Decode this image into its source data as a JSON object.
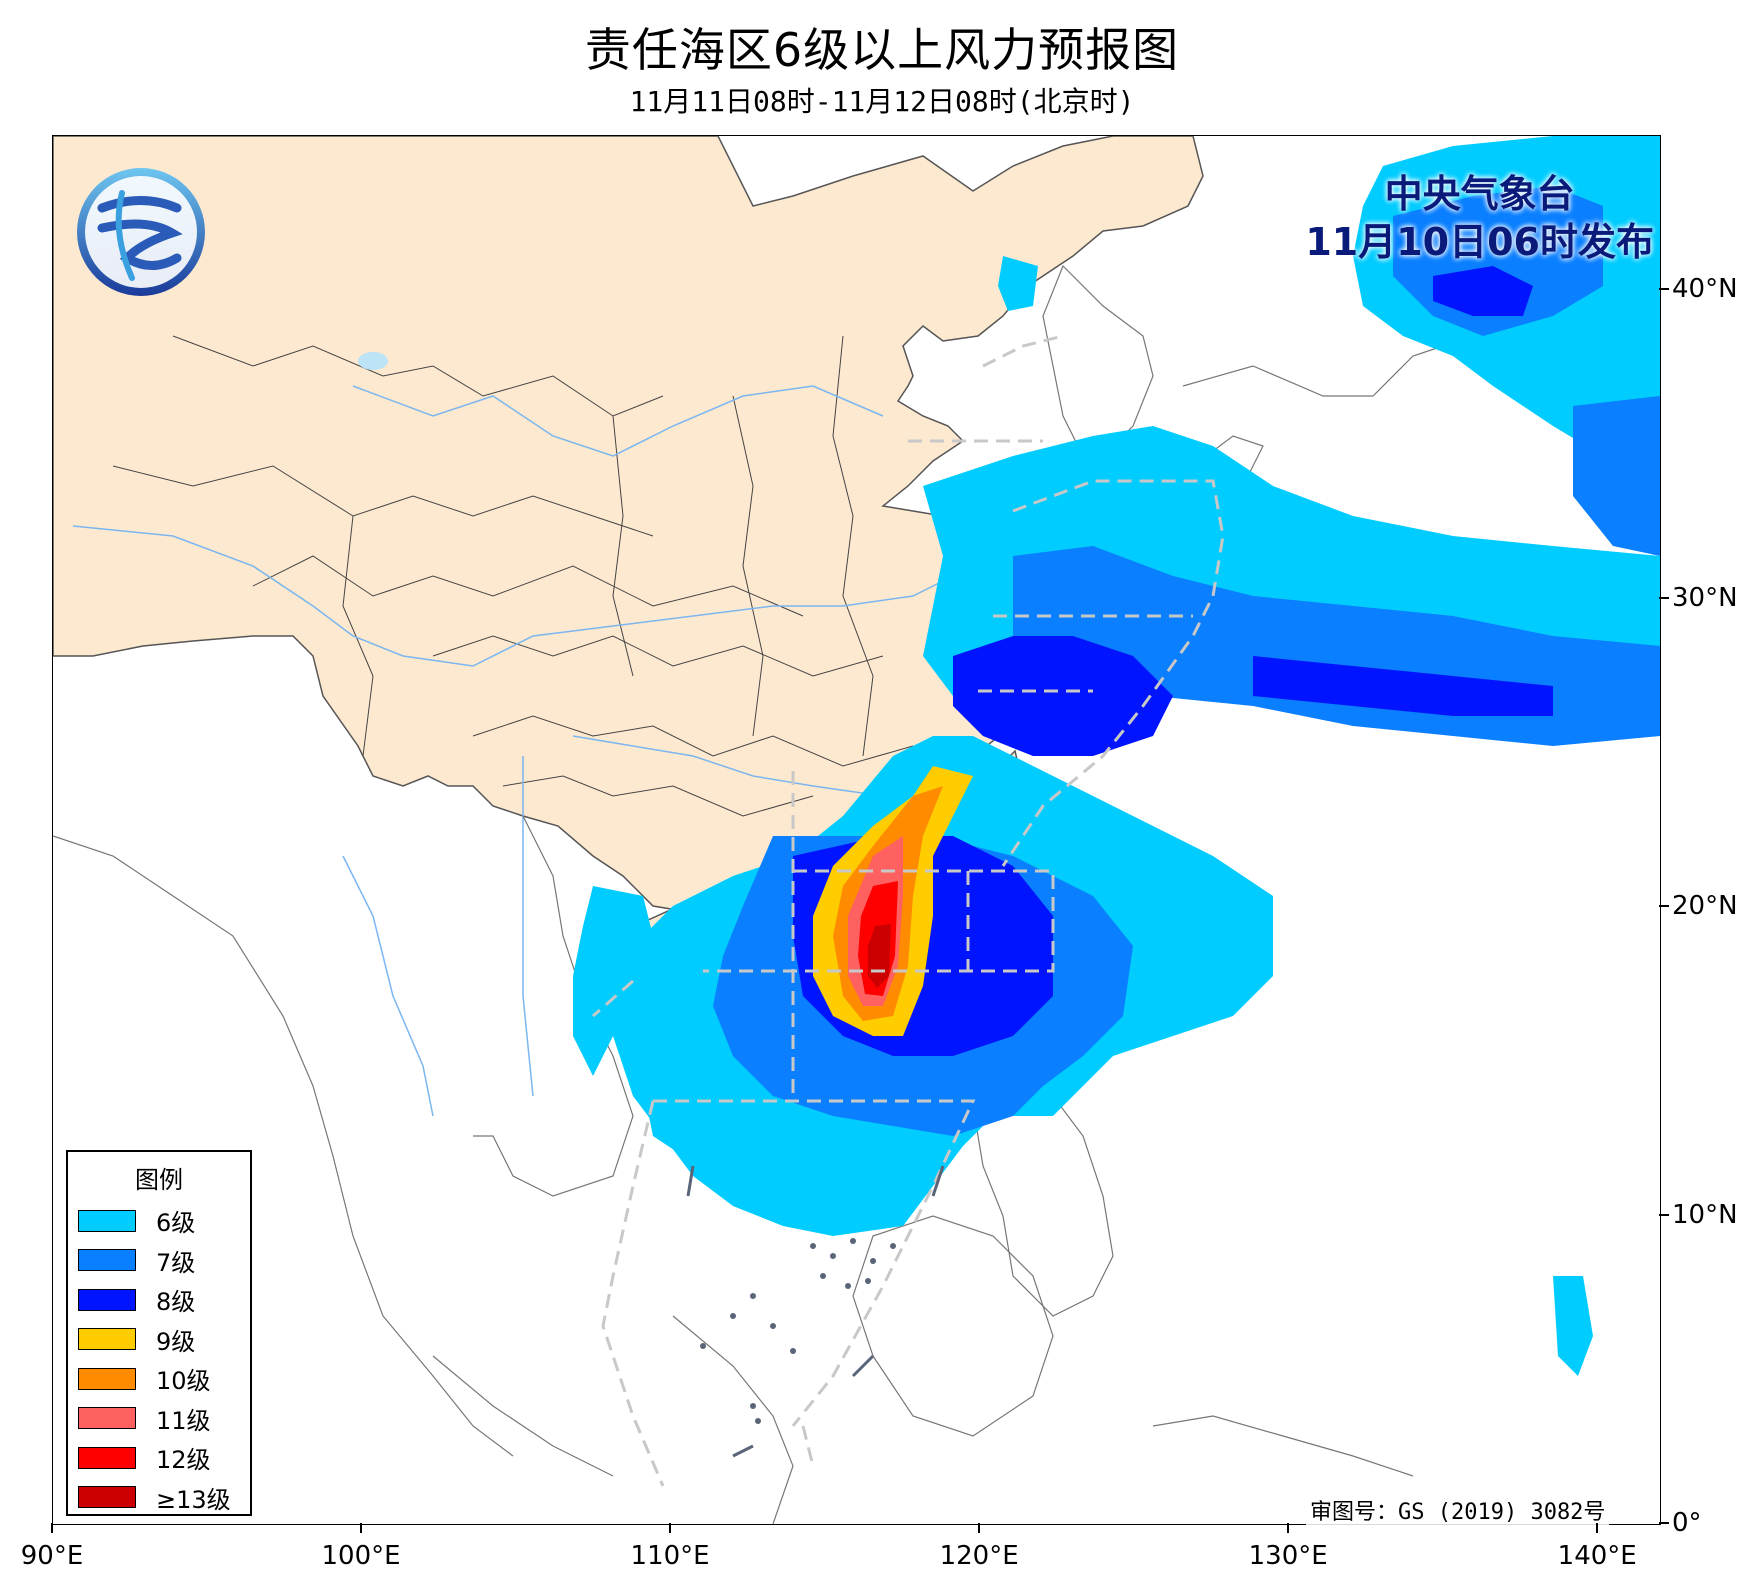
{
  "title": "责任海区6级以上风力预报图",
  "subtitle": "11月11日08时-11月12日08时(北京时)",
  "issuer": {
    "line1": "中央气象台",
    "line2": "11月10日06时发布"
  },
  "approval_no": "审图号：GS (2019) 3082号",
  "axes": {
    "lon_ticks": [
      "90°E",
      "100°E",
      "110°E",
      "120°E",
      "130°E",
      "140°E"
    ],
    "lat_ticks": [
      "40°N",
      "30°N",
      "20°N",
      "10°N",
      "0°"
    ]
  },
  "legend": {
    "title": "图例",
    "items": [
      {
        "label": "6级",
        "color": "#00ccff"
      },
      {
        "label": "7级",
        "color": "#0a7fff"
      },
      {
        "label": "8级",
        "color": "#0014ff"
      },
      {
        "label": "9级",
        "color": "#ffcc00"
      },
      {
        "label": "10级",
        "color": "#ff8c00"
      },
      {
        "label": "11级",
        "color": "#ff6060"
      },
      {
        "label": "12级",
        "color": "#ff0000"
      },
      {
        "label": "≥13级",
        "color": "#cc0000"
      }
    ]
  },
  "colors": {
    "land_china": "#fde9cf",
    "sea": "#ffffff",
    "border": "#333333",
    "river": "#7ab6f0",
    "responsibility_zone": "#c8c8c8",
    "issuer_text": "#0a1a7a"
  }
}
